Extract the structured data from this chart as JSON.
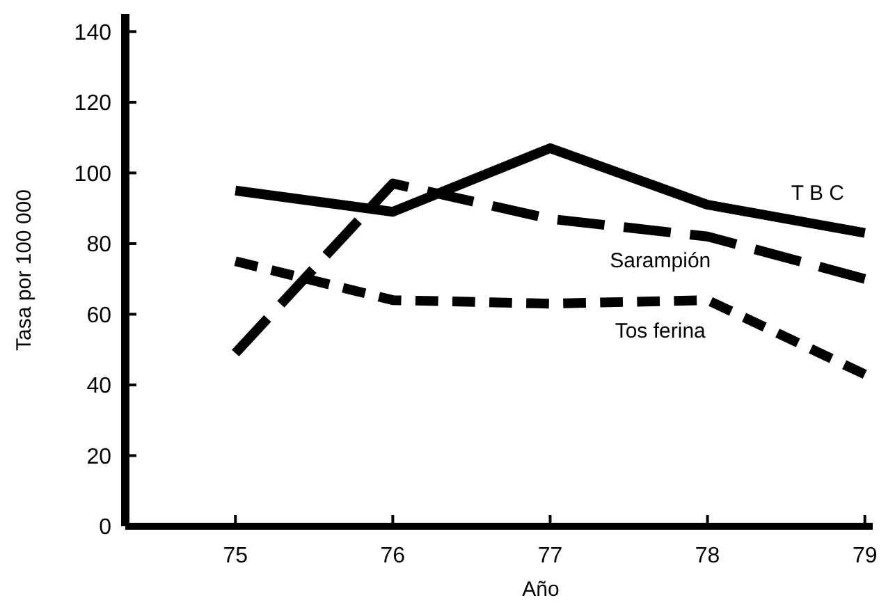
{
  "chart_data": {
    "type": "line",
    "xlabel": "Año",
    "ylabel": "Tasa por 100 000",
    "x": [
      75,
      76,
      77,
      78,
      79
    ],
    "xlim": [
      74.3,
      79.05
    ],
    "xticks": [
      75,
      76,
      77,
      78,
      79
    ],
    "ylim": [
      0,
      145
    ],
    "yticks": [
      0,
      20,
      40,
      60,
      80,
      100,
      120,
      140
    ],
    "grid": false,
    "series": [
      {
        "name": "T B C",
        "color": "#000000",
        "line_style": "solid",
        "values": [
          95,
          89,
          107,
          91,
          83
        ]
      },
      {
        "name": "Sarampión",
        "color": "#000000",
        "line_style": "dashed",
        "values": [
          49,
          97,
          87,
          82,
          70
        ]
      },
      {
        "name": "Tos ferina",
        "color": "#000000",
        "line_style": "dotted",
        "values": [
          75,
          64,
          63,
          64,
          43
        ]
      }
    ]
  }
}
